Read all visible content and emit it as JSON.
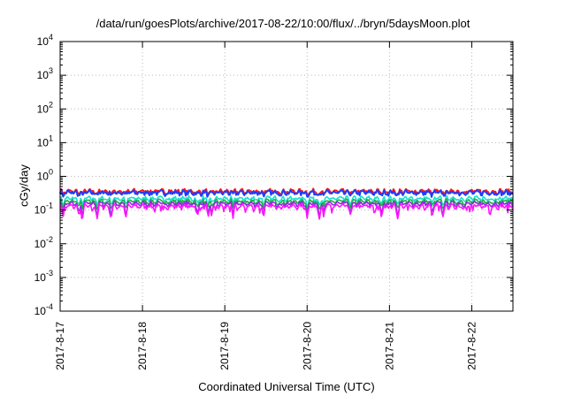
{
  "chart_data": {
    "type": "line",
    "title": "/data/run/goesPlots/archive/2017-08-22/10:00/flux/../bryn/5daysMoon.plot",
    "xlabel": "Coordinated Universal Time (UTC)",
    "ylabel": "cGy/day",
    "yscale": "log",
    "ylim": [
      0.0001,
      10000
    ],
    "xlim": [
      "2017-8-17",
      "2017-8-22 12:00"
    ],
    "x_ticks": [
      "2017-8-17",
      "2017-8-18",
      "2017-8-19",
      "2017-8-20",
      "2017-8-21",
      "2017-8-22"
    ],
    "y_ticks": [
      {
        "base": "10",
        "exp": "-4"
      },
      {
        "base": "10",
        "exp": "-3"
      },
      {
        "base": "10",
        "exp": "-2"
      },
      {
        "base": "10",
        "exp": "-1"
      },
      {
        "base": "10",
        "exp": "0"
      },
      {
        "base": "10",
        "exp": "1"
      },
      {
        "base": "10",
        "exp": "2"
      },
      {
        "base": "10",
        "exp": "3"
      },
      {
        "base": "10",
        "exp": "4"
      }
    ],
    "grid": true,
    "legend": "none",
    "series": [
      {
        "color": "#ff1414",
        "level": 0.36,
        "values": []
      },
      {
        "color": "#1e3cff",
        "level": 0.33,
        "values": []
      },
      {
        "color": "#18e0d0",
        "level": 0.22,
        "values": []
      },
      {
        "color": "#20b040",
        "level": 0.18,
        "values": []
      },
      {
        "color": "#8a2be2",
        "level": 0.155,
        "values": []
      },
      {
        "color": "#ff14ff",
        "level": 0.13,
        "values": []
      }
    ],
    "dips": [
      0.04,
      0.23,
      0.27,
      0.45,
      0.62,
      0.8,
      1.67,
      1.8,
      1.84,
      2.1,
      2.47,
      3.0,
      3.15,
      3.2,
      3.53,
      3.9,
      4.1,
      4.52,
      4.65
    ]
  }
}
